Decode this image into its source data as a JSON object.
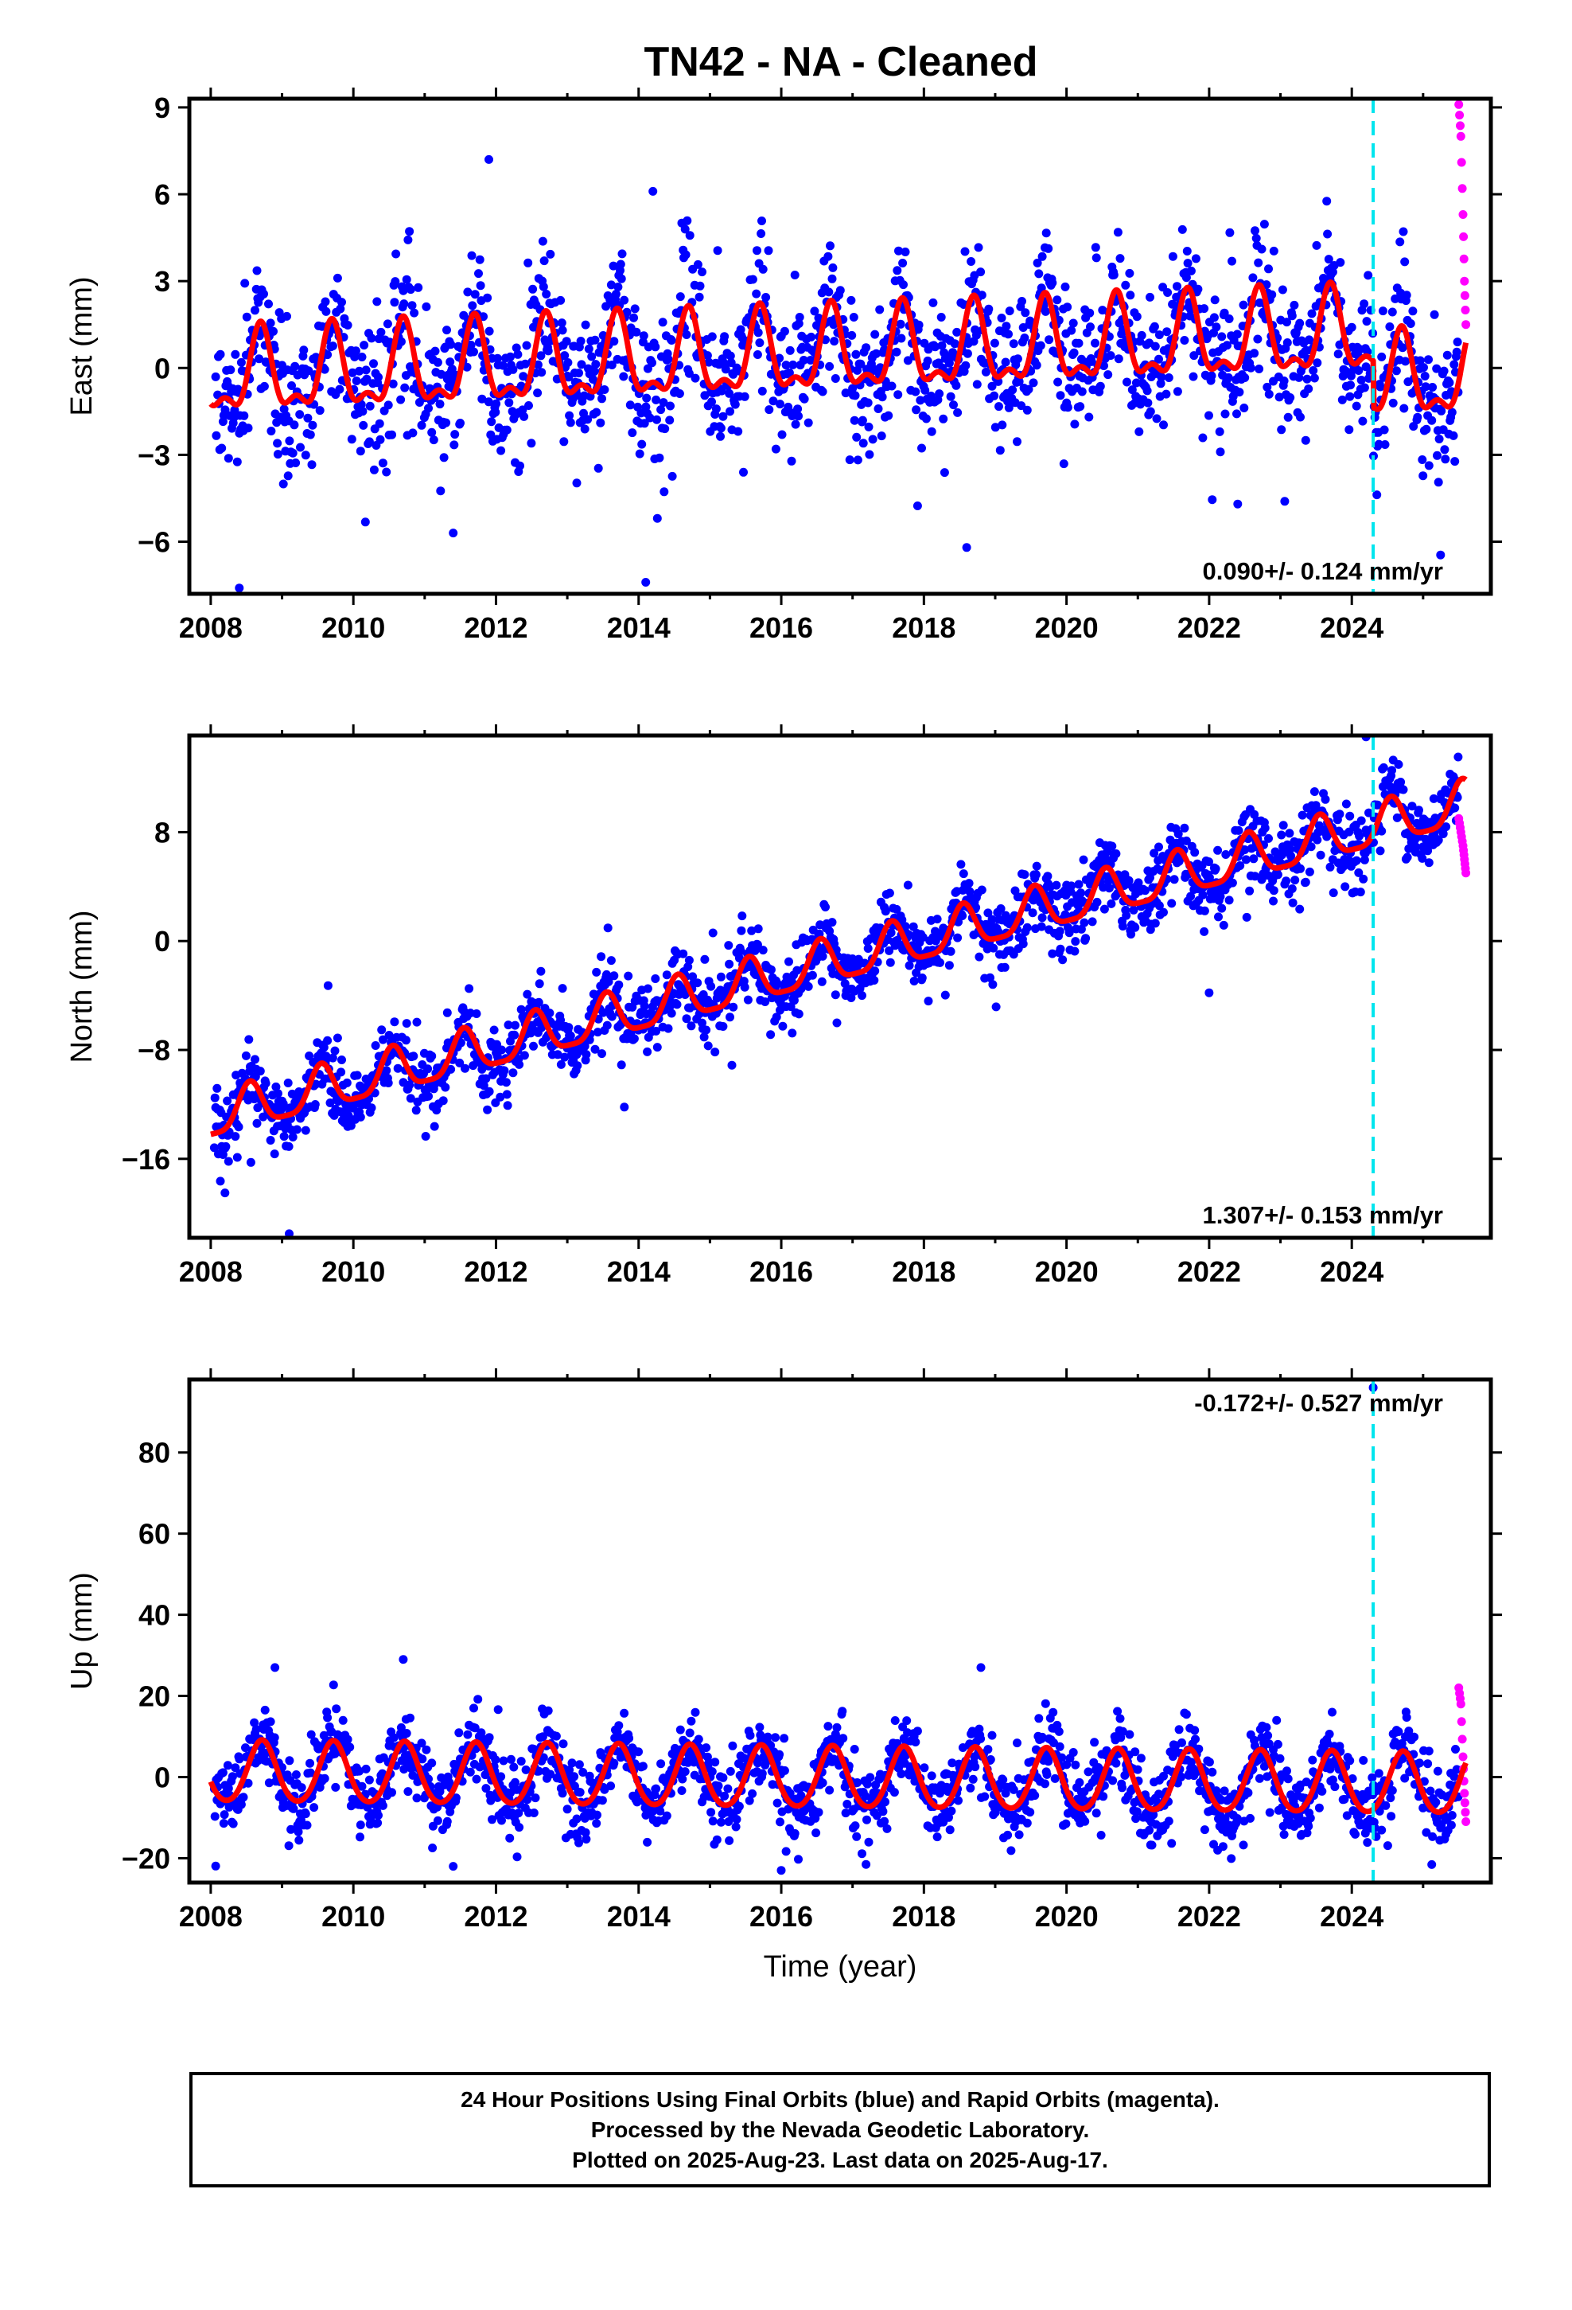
{
  "title": "TN42  - NA - Cleaned",
  "colors": {
    "final_points": "#0000ff",
    "rapid_points": "#ff00ff",
    "model_fit": "#ff0000",
    "event_line": "#00e5ee"
  },
  "footer": {
    "line1": "24 Hour Positions Using Final Orbits (blue) and Rapid Orbits (magenta).",
    "line2": "Processed by the Nevada Geodetic Laboratory.",
    "line3": "Plotted on 2025-Aug-23. Last data on 2025-Aug-17."
  },
  "chart_data": [
    {
      "type": "scatter",
      "component": "east",
      "ylabel": "East (mm)",
      "xlabel": "",
      "xlim": [
        2007.7,
        2025.95
      ],
      "ylim": [
        -7.8,
        9.3
      ],
      "xticks": [
        2008,
        2010,
        2012,
        2014,
        2016,
        2018,
        2020,
        2022,
        2024
      ],
      "xtick_labels": [
        "2008",
        "2010",
        "2012",
        "2014",
        "2016",
        "2018",
        "2020",
        "2022",
        "2024"
      ],
      "yticks": [
        -6,
        -3,
        0,
        3,
        6,
        9
      ],
      "ytick_labels": [
        "−6",
        "−3",
        "0",
        "3",
        "6",
        "9"
      ],
      "rate_label": "0.090+/- 0.124 mm/yr",
      "rate_label_position": "bottom-right",
      "event_line_x": 2024.3,
      "series": [
        {
          "name": "Final Orbits (blue)",
          "trend": {
            "intercept": -0.35,
            "slope": 0.09
          },
          "annual_amplitude": 1.3,
          "annual_peak_phase": 0.7,
          "semiannual_amplitude": 0.6,
          "x_range": [
            2008.05,
            2025.5
          ],
          "scatter_sd": 1.2
        },
        {
          "name": "Rapid Orbits (magenta)",
          "x": [
            2025.5,
            2025.53,
            2025.56,
            2025.58,
            2025.6
          ],
          "values": [
            9.1,
            8.0,
            5.3,
            3.0,
            1.5
          ]
        }
      ],
      "outliers": [
        [
          2008.4,
          -7.6
        ],
        [
          2011.9,
          7.2
        ],
        [
          2014.2,
          6.1
        ],
        [
          2014.1,
          -7.4
        ],
        [
          2018.6,
          -6.2
        ],
        [
          2011.4,
          -5.7
        ],
        [
          2022.4,
          -4.7
        ]
      ],
      "model_fit": {
        "name": "fit",
        "x_range": [
          2008.0,
          2025.6
        ],
        "steps": [
          [
            2024.3,
            -1.6
          ]
        ]
      }
    },
    {
      "type": "scatter",
      "component": "north",
      "ylabel": "North (mm)",
      "xlabel": "",
      "xlim": [
        2007.7,
        2025.95
      ],
      "ylim": [
        -21.8,
        15.1
      ],
      "xticks": [
        2008,
        2010,
        2012,
        2014,
        2016,
        2018,
        2020,
        2022,
        2024
      ],
      "xtick_labels": [
        "2008",
        "2010",
        "2012",
        "2014",
        "2016",
        "2018",
        "2020",
        "2022",
        "2024"
      ],
      "yticks": [
        -16,
        -8,
        0,
        8
      ],
      "ytick_labels": [
        "−16",
        "−8",
        "0",
        "8"
      ],
      "rate_label": "1.307+/- 0.153 mm/yr",
      "rate_label_position": "bottom-right",
      "event_line_x": 2024.3,
      "series": [
        {
          "name": "Final Orbits (blue)",
          "trend": {
            "intercept": -13.0,
            "slope": 1.307
          },
          "annual_amplitude": 1.6,
          "annual_peak_phase": 0.55,
          "semiannual_amplitude": 0.4,
          "x_range": [
            2008.05,
            2025.5
          ],
          "scatter_sd": 1.3
        },
        {
          "name": "Rapid Orbits (magenta)",
          "x": [
            2025.5,
            2025.53,
            2025.56,
            2025.58,
            2025.6
          ],
          "values": [
            9.0,
            8.0,
            7.0,
            6.0,
            5.0
          ]
        }
      ],
      "outliers": [
        [
          2009.1,
          -21.5
        ],
        [
          2022.0,
          -3.8
        ],
        [
          2024.2,
          15.0
        ],
        [
          2013.8,
          -12.2
        ],
        [
          2008.2,
          -18.5
        ]
      ],
      "model_fit": {
        "name": "fit",
        "x_range": [
          2008.0,
          2025.6
        ],
        "steps": []
      }
    },
    {
      "type": "scatter",
      "component": "up",
      "ylabel": "Up (mm)",
      "xlabel": "Time (year)",
      "xlim": [
        2007.7,
        2025.95
      ],
      "ylim": [
        -26,
        98
      ],
      "xticks": [
        2008,
        2010,
        2012,
        2014,
        2016,
        2018,
        2020,
        2022,
        2024
      ],
      "xtick_labels": [
        "2008",
        "2010",
        "2012",
        "2014",
        "2016",
        "2018",
        "2020",
        "2022",
        "2024"
      ],
      "yticks": [
        -20,
        0,
        20,
        40,
        60,
        80
      ],
      "ytick_labels": [
        "−20",
        "0",
        "20",
        "40",
        "60",
        "80"
      ],
      "rate_label": "-0.172+/- 0.527 mm/yr",
      "rate_label_position": "top-right",
      "event_line_x": 2024.3,
      "series": [
        {
          "name": "Final Orbits (blue)",
          "trend": {
            "intercept": 1.0,
            "slope": -0.172
          },
          "annual_amplitude": 7.5,
          "annual_peak_phase": 0.72,
          "semiannual_amplitude": 0.8,
          "x_range": [
            2008.05,
            2025.5
          ],
          "scatter_sd": 4.5
        },
        {
          "name": "Rapid Orbits (magenta)",
          "x": [
            2025.5,
            2025.53,
            2025.56,
            2025.58,
            2025.6
          ],
          "values": [
            22.0,
            18.0,
            5.0,
            -4.0,
            -11.0
          ]
        }
      ],
      "outliers": [
        [
          2024.3,
          96.0
        ],
        [
          2008.9,
          27.0
        ],
        [
          2010.7,
          29.0
        ],
        [
          2018.8,
          27.0
        ],
        [
          2011.4,
          -22.0
        ],
        [
          2016.0,
          -23.0
        ]
      ],
      "model_fit": {
        "name": "fit",
        "x_range": [
          2008.0,
          2025.6
        ],
        "steps": []
      }
    }
  ]
}
